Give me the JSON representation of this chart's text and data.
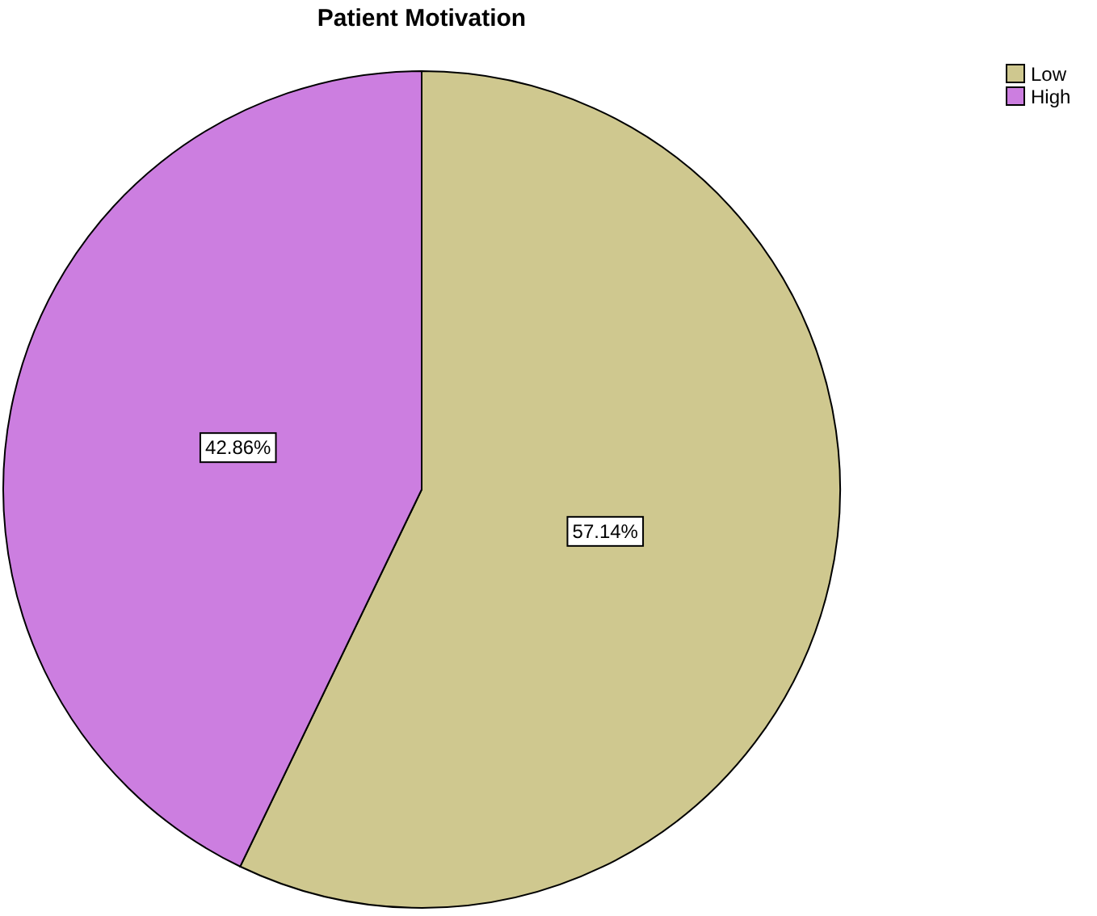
{
  "chart_data": {
    "type": "pie",
    "title": "Patient Motivation",
    "categories": [
      "Low",
      "High"
    ],
    "values": [
      57.14,
      42.86
    ],
    "colors": [
      "#cfc88f",
      "#cc7ee0"
    ],
    "value_labels": [
      "57.14%",
      "42.86%"
    ],
    "legend": "top right"
  }
}
